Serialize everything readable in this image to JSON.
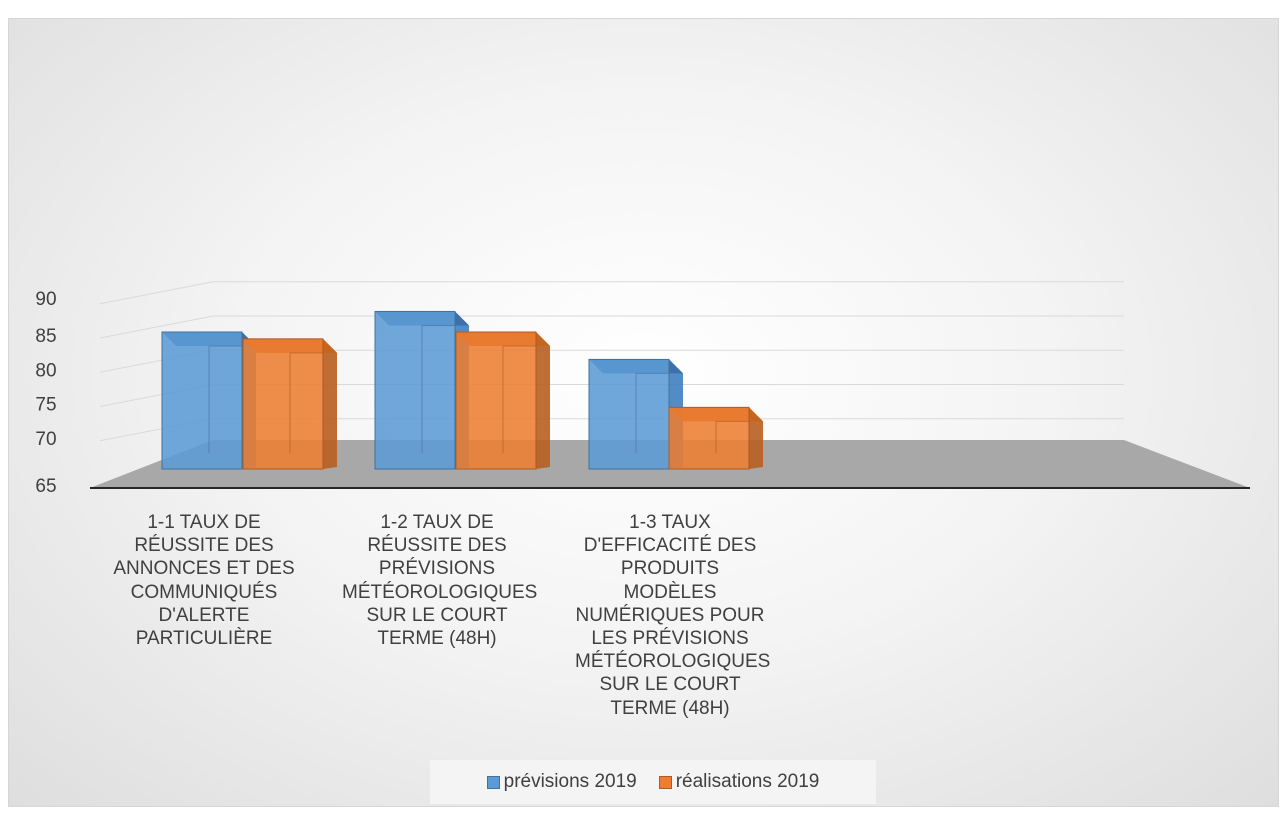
{
  "chart_data": {
    "type": "bar",
    "style": "3d-clustered-column",
    "categories": [
      "1-1 Taux de\nréussite des\nannonces et des\ncommuniqués\nd'alerte\nparticulière",
      "1-2 Taux de\nréussite des\nprévisions\nmétéorologiques\nsur le court\nterme (48h)",
      "1-3 Taux\nd'efficacité des\nproduits modèles\nnumériques pour\nles prévisions\nmétéorologiques\nsur le court\nterme (48h)"
    ],
    "series": [
      {
        "name": "prévisions 2019",
        "values": [
          85,
          88,
          81
        ],
        "color": "#5b9bd5"
      },
      {
        "name": "réalisations 2019",
        "values": [
          84,
          85,
          74
        ],
        "color": "#ed7d31"
      }
    ],
    "yticks": [
      "90",
      "85",
      "80",
      "75",
      "70",
      "65"
    ],
    "ylim": [
      65,
      90
    ],
    "grid": true,
    "legend_position": "bottom"
  }
}
